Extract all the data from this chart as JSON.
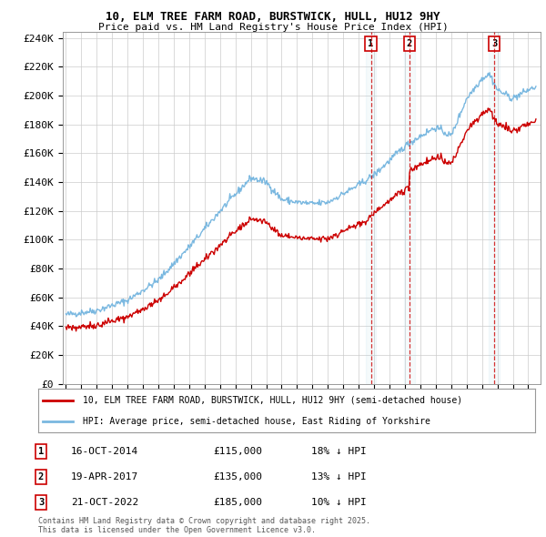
{
  "title1": "10, ELM TREE FARM ROAD, BURSTWICK, HULL, HU12 9HY",
  "title2": "Price paid vs. HM Land Registry's House Price Index (HPI)",
  "ylim": [
    0,
    244000
  ],
  "yticks": [
    0,
    20000,
    40000,
    60000,
    80000,
    100000,
    120000,
    140000,
    160000,
    180000,
    200000,
    220000,
    240000
  ],
  "ytick_labels": [
    "£0",
    "£20K",
    "£40K",
    "£60K",
    "£80K",
    "£100K",
    "£120K",
    "£140K",
    "£160K",
    "£180K",
    "£200K",
    "£220K",
    "£240K"
  ],
  "xlim_start": 1994.8,
  "xlim_end": 2025.8,
  "sales": [
    {
      "date": 2014.79,
      "price": 115000,
      "label": "1",
      "date_str": "16-OCT-2014",
      "pct": "18%"
    },
    {
      "date": 2017.29,
      "price": 135000,
      "label": "2",
      "date_str": "19-APR-2017",
      "pct": "13%"
    },
    {
      "date": 2022.79,
      "price": 185000,
      "label": "3",
      "date_str": "21-OCT-2022",
      "pct": "10%"
    }
  ],
  "legend_line1": "10, ELM TREE FARM ROAD, BURSTWICK, HULL, HU12 9HY (semi-detached house)",
  "legend_line2": "HPI: Average price, semi-detached house, East Riding of Yorkshire",
  "footnote": "Contains HM Land Registry data © Crown copyright and database right 2025.\nThis data is licensed under the Open Government Licence v3.0.",
  "hpi_color": "#7ab8e0",
  "sale_color": "#cc0000",
  "grid_color": "#cccccc",
  "bg_color": "#ffffff"
}
